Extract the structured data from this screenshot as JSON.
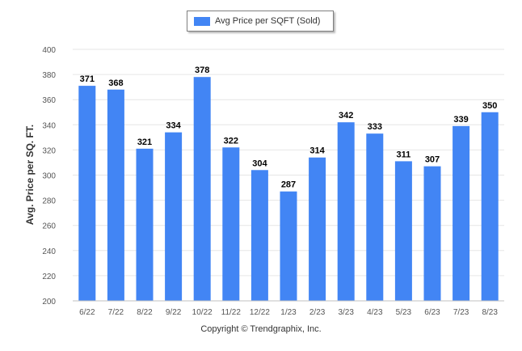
{
  "legend": {
    "label": "Avg Price per SQFT (Sold)"
  },
  "footer": {
    "copyright": "Copyright © Trendgraphix, Inc."
  },
  "chart_data": {
    "type": "bar",
    "categories": [
      "6/22",
      "7/22",
      "8/22",
      "9/22",
      "10/22",
      "11/22",
      "12/22",
      "1/23",
      "2/23",
      "3/23",
      "4/23",
      "5/23",
      "6/23",
      "7/23",
      "8/23"
    ],
    "series": [
      {
        "name": "Avg Price per SQFT (Sold)",
        "values": [
          371,
          368,
          321,
          334,
          378,
          322,
          304,
          287,
          314,
          342,
          333,
          311,
          307,
          339,
          350
        ]
      }
    ],
    "xlabel": "",
    "ylabel": "Avg. Price per SQ. FT.",
    "ylim": [
      200,
      400
    ],
    "yticks": [
      200,
      220,
      240,
      260,
      280,
      300,
      320,
      340,
      360,
      380,
      400
    ],
    "grid": true,
    "legend_position": "top-center",
    "bar_color": "#4285f4",
    "data_labels": true
  }
}
